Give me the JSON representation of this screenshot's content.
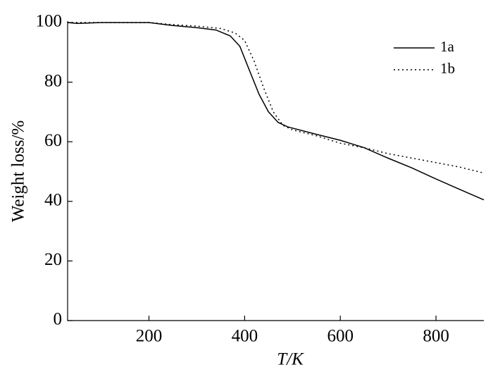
{
  "chart_data": {
    "type": "line",
    "xlabel": "T/K",
    "ylabel": "Weight loss/%",
    "xlim": [
      30,
      900
    ],
    "xticks": [
      200,
      400,
      600,
      800
    ],
    "ylim": [
      0,
      100
    ],
    "yticks": [
      0,
      20,
      40,
      60,
      80,
      100
    ],
    "legend": "upper right",
    "series": [
      {
        "name": "1a",
        "color": "#000000",
        "line_style": "solid",
        "x": [
          30,
          50,
          100,
          200,
          250,
          300,
          340,
          370,
          390,
          410,
          430,
          450,
          470,
          490,
          550,
          600,
          650,
          700,
          750,
          800,
          850,
          900
        ],
        "values": [
          100,
          99.7,
          100,
          100,
          99,
          98.3,
          97.5,
          95.5,
          92,
          84,
          76,
          70,
          66.5,
          65,
          62.5,
          60.5,
          58,
          54.5,
          51.2,
          47.5,
          44,
          40.5
        ]
      },
      {
        "name": "1b",
        "color": "#000000",
        "line_style": "dotted",
        "x": [
          30,
          100,
          200,
          250,
          300,
          350,
          380,
          400,
          420,
          440,
          460,
          480,
          500,
          550,
          600,
          650,
          700,
          750,
          800,
          850,
          900
        ],
        "values": [
          100,
          100,
          100,
          99.3,
          98.8,
          98,
          96.5,
          94,
          87,
          78,
          70,
          65.5,
          64,
          62,
          59.5,
          58,
          56,
          54.5,
          53,
          51.5,
          49.5
        ]
      }
    ]
  }
}
